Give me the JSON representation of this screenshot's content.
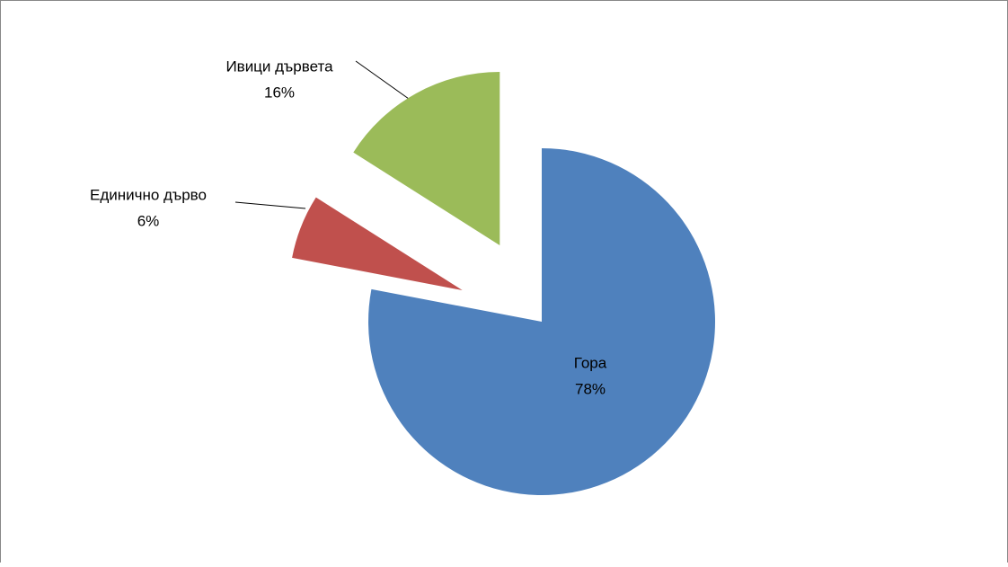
{
  "chart_data": {
    "type": "pie",
    "categories": [
      "Гора",
      "Единично дърво",
      "Ивици дървета"
    ],
    "values": [
      78,
      6,
      16
    ],
    "value_labels": [
      "78%",
      "6%",
      "16%"
    ],
    "colors": [
      "#4f81bd",
      "#c0504d",
      "#9bbb59"
    ]
  }
}
